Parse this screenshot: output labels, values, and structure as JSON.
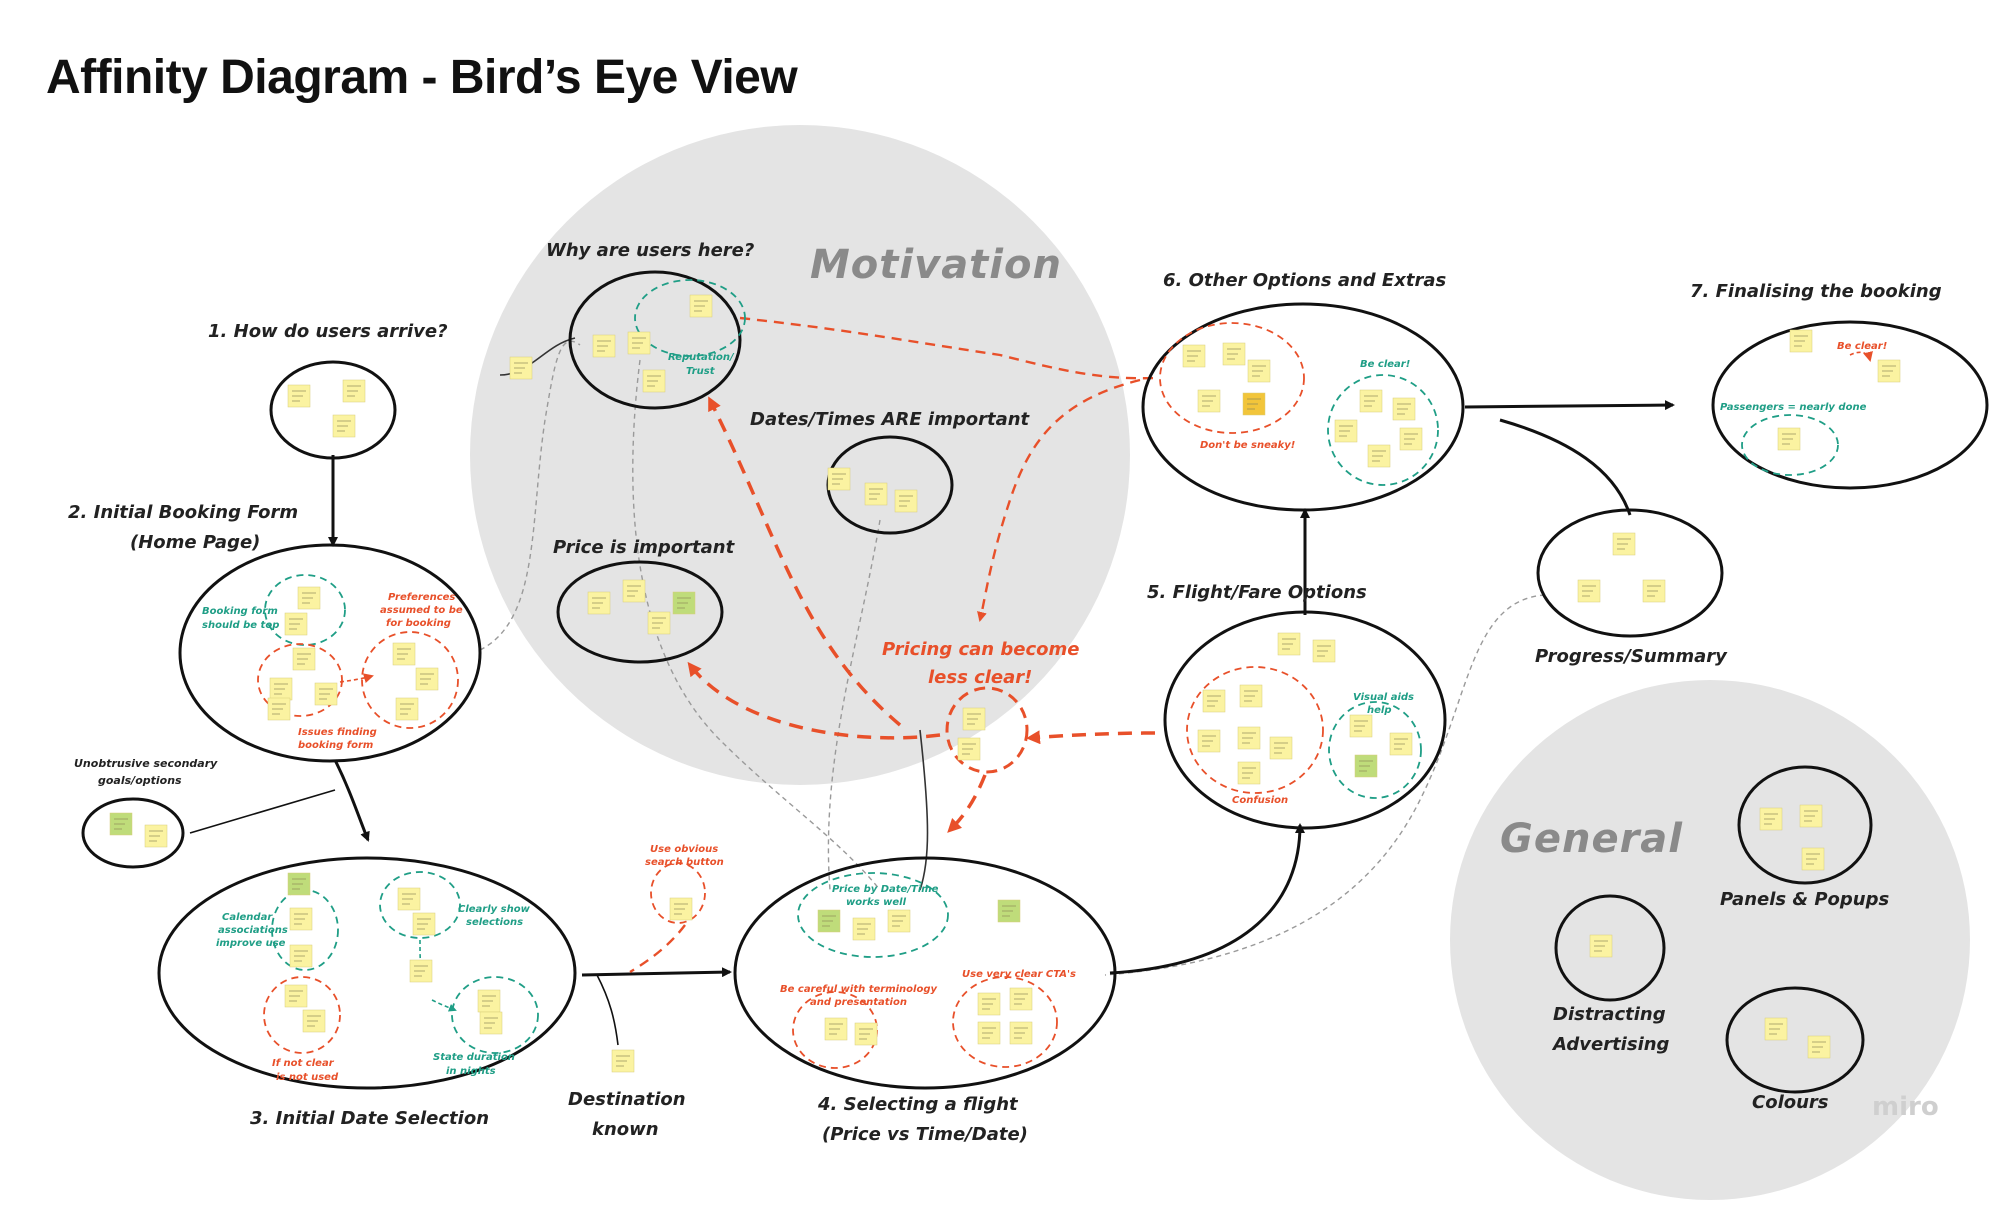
{
  "title": "Affinity Diagram - Bird’s Eye View",
  "watermark": "miro",
  "colors": {
    "accent_red": "#e8502a",
    "accent_teal": "#1f9e86",
    "zone_gray": "#e4e4e4",
    "sticky_yellow": "#fbf3a1",
    "sticky_green": "#bfdc7a",
    "sticky_orange": "#f2c53a"
  },
  "zones": {
    "motivation": "Motivation",
    "general": "General"
  },
  "labels": {
    "arrive": "1. How do users arrive?",
    "booking_form_1": "2. Initial Booking Form",
    "booking_form_2": "(Home Page)",
    "why_here": "Why are users here?",
    "dates_important": "Dates/Times ARE important",
    "price_important": "Price is important",
    "other_options": "6. Other Options and Extras",
    "finalising": "7. Finalising the booking",
    "progress": "Progress/Summary",
    "flight_fare": "5. Flight/Fare Options",
    "pricing_1": "Pricing can become",
    "pricing_2": "less clear!",
    "unobtrusive_1": "Unobtrusive secondary",
    "unobtrusive_2": "goals/options",
    "date_selection": "3. Initial Date Selection",
    "destination_1": "Destination",
    "destination_2": "known",
    "selecting_1": "4. Selecting a flight",
    "selecting_2": "(Price vs Time/Date)",
    "panels": "Panels & Popups",
    "distracting_1": "Distracting",
    "distracting_2": "Advertising",
    "colours": "Colours"
  },
  "sublabels": {
    "reputation_1": "Reputation/",
    "reputation_2": "Trust",
    "booking_top_1": "Booking form",
    "booking_top_2": "should be top",
    "preferences_1": "Preferences",
    "preferences_2": "assumed to be",
    "preferences_3": "for booking",
    "issues_1": "Issues finding",
    "issues_2": "booking form",
    "dont_sneaky": "Don't be sneaky!",
    "be_clear_6": "Be clear!",
    "be_clear_7": "Be clear!",
    "passengers": "Passengers = nearly done",
    "visual_aids_1": "Visual aids",
    "visual_aids_2": "help",
    "confusion": "Confusion",
    "calendar_1": "Calendar",
    "calendar_2": "associations",
    "calendar_3": "improve use",
    "clearly_show_1": "Clearly show",
    "clearly_show_2": "selections",
    "not_clear_1": "If not clear",
    "not_clear_2": "is not used",
    "state_duration_1": "State duration",
    "state_duration_2": "in nights",
    "obvious_search_1": "Use obvious",
    "obvious_search_2": "search button",
    "price_by_date_1": "Price by Date/Time",
    "price_by_date_2": "works well",
    "careful_1": "Be careful with terminology",
    "careful_2": "and presentation",
    "clear_ctas": "Use very clear CTA's"
  }
}
